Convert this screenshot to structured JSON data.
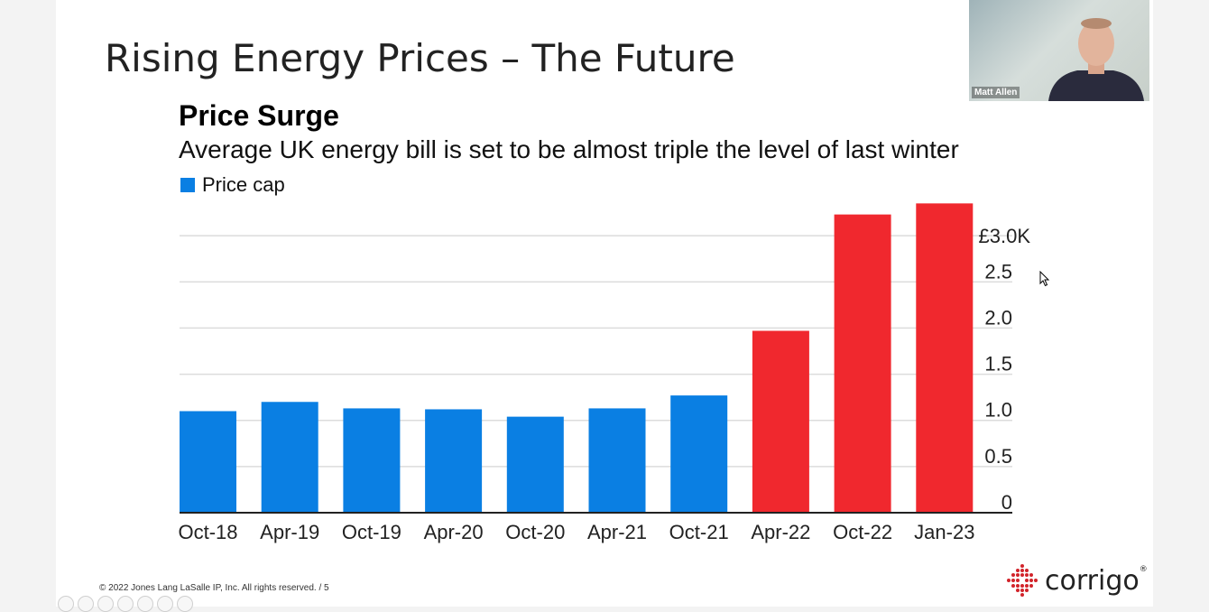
{
  "slide": {
    "title": "Rising Energy Prices – The Future",
    "copyright": "© 2022 Jones Lang LaSalle IP, Inc. All rights reserved. / 5",
    "logo_text": "corrigo",
    "logo_reg": "®"
  },
  "video": {
    "participant_name": "Matt Allen"
  },
  "colors": {
    "blue": "#0a7fe3",
    "red": "#f0282e"
  },
  "chart_data": {
    "type": "bar",
    "title": "Price Surge",
    "subtitle": "Average UK energy bill is set to be almost triple the level of last winter",
    "legend": "Price cap",
    "categories": [
      "Oct-18",
      "Apr-19",
      "Oct-19",
      "Apr-20",
      "Oct-20",
      "Apr-21",
      "Oct-21",
      "Apr-22",
      "Oct-22",
      "Jan-23"
    ],
    "values": [
      1.1,
      1.2,
      1.13,
      1.12,
      1.04,
      1.13,
      1.27,
      1.97,
      3.23,
      3.35
    ],
    "highlight": [
      false,
      false,
      false,
      false,
      false,
      false,
      false,
      true,
      true,
      true
    ],
    "y_ticks": [
      0,
      0.5,
      1.0,
      1.5,
      2.0,
      2.5,
      3.0
    ],
    "y_tick_labels": [
      "0",
      "0.5",
      "1.0",
      "1.5",
      "2.0",
      "2.5",
      "£3.0K"
    ],
    "ylim": [
      0,
      3.5
    ],
    "y_axis_position": "right",
    "grid": true
  }
}
